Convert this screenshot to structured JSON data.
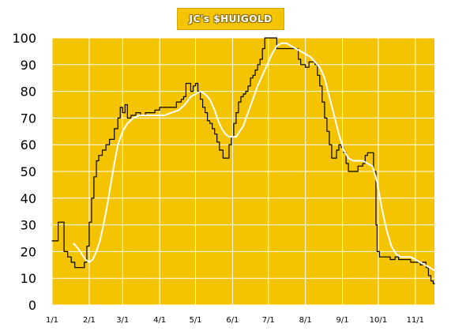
{
  "chart_data": {
    "type": "line",
    "title": "JC's $HUIGOLD",
    "xlabel": "",
    "ylabel": "",
    "ylim": [
      0,
      100
    ],
    "yticks": [
      0,
      10,
      20,
      30,
      40,
      50,
      60,
      70,
      80,
      90,
      100
    ],
    "x_start": "1/1",
    "x_end_day": 320,
    "xticks": [
      {
        "label": "1/1",
        "day": 0
      },
      {
        "label": "2/1",
        "day": 31
      },
      {
        "label": "3/1",
        "day": 59
      },
      {
        "label": "4/1",
        "day": 90
      },
      {
        "label": "5/1",
        "day": 120
      },
      {
        "label": "6/1",
        "day": 151
      },
      {
        "label": "7/1",
        "day": 181
      },
      {
        "label": "8/1",
        "day": 212
      },
      {
        "label": "9/1",
        "day": 243
      },
      {
        "label": "10/1",
        "day": 273
      },
      {
        "label": "11/1",
        "day": 304
      }
    ],
    "grid": true,
    "background": "#F5C400",
    "series": [
      {
        "style": "step",
        "color": "#000000",
        "points": [
          [
            0,
            24
          ],
          [
            3,
            24
          ],
          [
            5,
            31
          ],
          [
            8,
            31
          ],
          [
            10,
            20
          ],
          [
            13,
            18
          ],
          [
            16,
            16
          ],
          [
            19,
            14
          ],
          [
            25,
            14
          ],
          [
            27,
            16
          ],
          [
            29,
            22
          ],
          [
            31,
            31
          ],
          [
            33,
            40
          ],
          [
            35,
            48
          ],
          [
            37,
            54
          ],
          [
            39,
            56
          ],
          [
            42,
            58
          ],
          [
            45,
            60
          ],
          [
            48,
            62
          ],
          [
            52,
            66
          ],
          [
            55,
            70
          ],
          [
            57,
            74
          ],
          [
            59,
            72
          ],
          [
            61,
            75
          ],
          [
            63,
            70
          ],
          [
            66,
            71
          ],
          [
            70,
            72
          ],
          [
            74,
            71
          ],
          [
            78,
            72
          ],
          [
            82,
            72
          ],
          [
            86,
            73
          ],
          [
            90,
            74
          ],
          [
            95,
            74
          ],
          [
            100,
            74
          ],
          [
            104,
            76
          ],
          [
            108,
            77
          ],
          [
            110,
            78
          ],
          [
            112,
            83
          ],
          [
            115,
            83
          ],
          [
            116,
            80
          ],
          [
            118,
            82
          ],
          [
            120,
            83
          ],
          [
            122,
            80
          ],
          [
            124,
            77
          ],
          [
            126,
            74
          ],
          [
            128,
            72
          ],
          [
            130,
            69
          ],
          [
            132,
            68
          ],
          [
            134,
            66
          ],
          [
            136,
            64
          ],
          [
            138,
            61
          ],
          [
            140,
            58
          ],
          [
            143,
            55
          ],
          [
            146,
            55
          ],
          [
            148,
            60
          ],
          [
            150,
            63
          ],
          [
            152,
            68
          ],
          [
            154,
            72
          ],
          [
            156,
            76
          ],
          [
            158,
            78
          ],
          [
            160,
            79
          ],
          [
            162,
            80
          ],
          [
            164,
            82
          ],
          [
            166,
            85
          ],
          [
            168,
            86
          ],
          [
            170,
            88
          ],
          [
            172,
            90
          ],
          [
            174,
            92
          ],
          [
            176,
            96
          ],
          [
            178,
            100
          ],
          [
            181,
            100
          ],
          [
            183,
            100
          ],
          [
            186,
            100
          ],
          [
            188,
            96
          ],
          [
            192,
            96
          ],
          [
            196,
            96
          ],
          [
            200,
            96
          ],
          [
            204,
            96
          ],
          [
            206,
            92
          ],
          [
            208,
            90
          ],
          [
            212,
            89
          ],
          [
            215,
            91
          ],
          [
            218,
            91
          ],
          [
            220,
            90
          ],
          [
            222,
            86
          ],
          [
            224,
            82
          ],
          [
            226,
            76
          ],
          [
            228,
            70
          ],
          [
            230,
            65
          ],
          [
            232,
            60
          ],
          [
            234,
            55
          ],
          [
            236,
            55
          ],
          [
            238,
            58
          ],
          [
            240,
            60
          ],
          [
            242,
            59
          ],
          [
            244,
            57
          ],
          [
            246,
            53
          ],
          [
            248,
            50
          ],
          [
            250,
            50
          ],
          [
            252,
            50
          ],
          [
            254,
            50
          ],
          [
            256,
            52
          ],
          [
            258,
            52
          ],
          [
            260,
            53
          ],
          [
            262,
            56
          ],
          [
            264,
            57
          ],
          [
            267,
            57
          ],
          [
            269,
            50
          ],
          [
            271,
            30
          ],
          [
            272,
            20
          ],
          [
            274,
            18
          ],
          [
            278,
            18
          ],
          [
            283,
            17
          ],
          [
            287,
            18
          ],
          [
            290,
            17
          ],
          [
            295,
            17
          ],
          [
            300,
            16
          ],
          [
            305,
            16
          ],
          [
            308,
            15
          ],
          [
            310,
            16
          ],
          [
            313,
            14
          ],
          [
            315,
            11
          ],
          [
            317,
            9
          ],
          [
            319,
            8
          ],
          [
            320,
            8
          ]
        ]
      },
      {
        "style": "smooth",
        "color": "#ffffff",
        "points": [
          [
            18,
            23
          ],
          [
            22,
            21
          ],
          [
            25,
            19
          ],
          [
            28,
            17
          ],
          [
            31,
            16
          ],
          [
            34,
            17
          ],
          [
            37,
            20
          ],
          [
            40,
            24
          ],
          [
            43,
            30
          ],
          [
            46,
            37
          ],
          [
            49,
            45
          ],
          [
            52,
            53
          ],
          [
            55,
            60
          ],
          [
            59,
            65
          ],
          [
            63,
            68
          ],
          [
            68,
            70
          ],
          [
            73,
            71
          ],
          [
            78,
            71
          ],
          [
            83,
            71
          ],
          [
            88,
            71
          ],
          [
            94,
            71
          ],
          [
            100,
            72
          ],
          [
            106,
            73
          ],
          [
            111,
            75
          ],
          [
            116,
            78
          ],
          [
            120,
            79
          ],
          [
            124,
            80
          ],
          [
            128,
            79
          ],
          [
            132,
            77
          ],
          [
            136,
            73
          ],
          [
            139,
            69
          ],
          [
            142,
            66
          ],
          [
            145,
            64
          ],
          [
            148,
            63
          ],
          [
            151,
            63
          ],
          [
            154,
            63
          ],
          [
            157,
            65
          ],
          [
            160,
            67
          ],
          [
            164,
            72
          ],
          [
            168,
            77
          ],
          [
            172,
            82
          ],
          [
            176,
            86
          ],
          [
            180,
            90
          ],
          [
            184,
            94
          ],
          [
            188,
            97
          ],
          [
            192,
            98
          ],
          [
            196,
            98
          ],
          [
            200,
            97
          ],
          [
            204,
            96
          ],
          [
            208,
            95
          ],
          [
            212,
            94
          ],
          [
            216,
            93
          ],
          [
            220,
            91
          ],
          [
            224,
            89
          ],
          [
            228,
            85
          ],
          [
            232,
            78
          ],
          [
            236,
            71
          ],
          [
            240,
            64
          ],
          [
            244,
            58
          ],
          [
            248,
            55
          ],
          [
            252,
            54
          ],
          [
            256,
            54
          ],
          [
            260,
            54
          ],
          [
            264,
            53
          ],
          [
            268,
            52
          ],
          [
            272,
            46
          ],
          [
            276,
            36
          ],
          [
            280,
            28
          ],
          [
            284,
            22
          ],
          [
            288,
            19
          ],
          [
            292,
            18
          ],
          [
            296,
            18
          ],
          [
            300,
            18
          ],
          [
            304,
            17
          ],
          [
            308,
            16
          ],
          [
            312,
            15
          ],
          [
            316,
            14
          ],
          [
            320,
            13
          ]
        ]
      }
    ]
  }
}
